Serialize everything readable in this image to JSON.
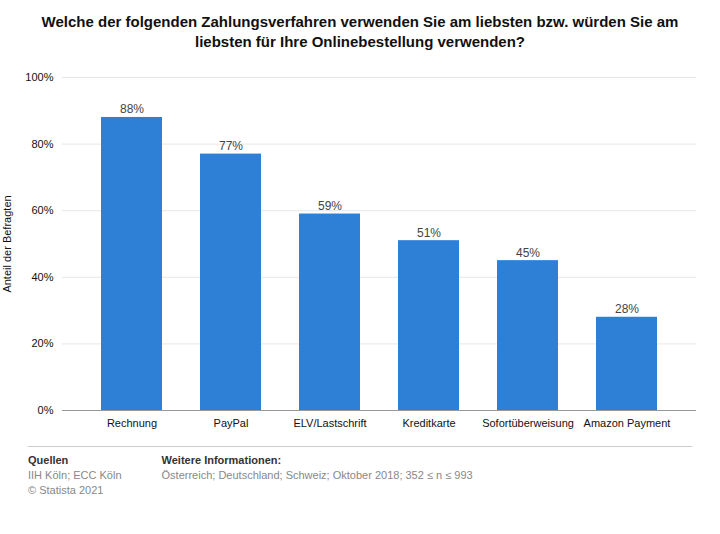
{
  "chart_data": {
    "type": "bar",
    "title": "Welche der folgenden Zahlungsverfahren verwenden Sie am liebsten bzw. würden Sie am liebsten für Ihre Onlinebestellung verwenden?",
    "categories": [
      "Rechnung",
      "PayPal",
      "ELV/Lastschrift",
      "Kreditkarte",
      "Sofortüberweisung",
      "Amazon Payment"
    ],
    "values": [
      88,
      77,
      59,
      51,
      45,
      28
    ],
    "value_labels": [
      "88%",
      "77%",
      "59%",
      "51%",
      "45%",
      "28%"
    ],
    "data_labels": true,
    "color": "#2E7FD6",
    "ylabel": "Anteil der Befragten",
    "ylim": [
      0,
      100
    ],
    "yticks": [
      {
        "value": 0,
        "label": "0%"
      },
      {
        "value": 20,
        "label": "20%"
      },
      {
        "value": 40,
        "label": "40%"
      },
      {
        "value": 60,
        "label": "60%"
      },
      {
        "value": 80,
        "label": "80%"
      },
      {
        "value": 100,
        "label": "100%"
      }
    ],
    "grid": true,
    "annotations": [
      {
        "heading": "Quellen",
        "lines": [
          "IIH Köln; ECC Köln",
          "© Statista 2021"
        ]
      },
      {
        "heading": "Weitere Informationen:",
        "lines": [
          "Österreich; Deutschland; Schweiz; Oktober 2018; 352 ≤ n ≤ 993"
        ]
      }
    ]
  }
}
